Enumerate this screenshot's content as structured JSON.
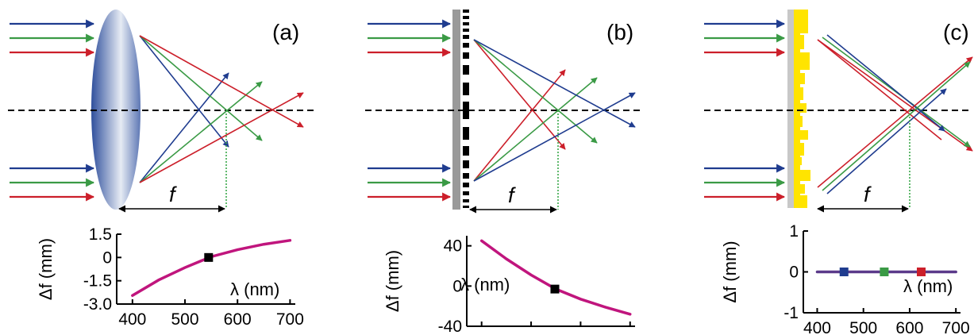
{
  "colors": {
    "blue": "#1f3c8f",
    "green": "#3a9a45",
    "red": "#cc1f2a",
    "magenta": "#c0157d",
    "purple": "#5b3a8a",
    "lens_edge": "#2f4f9c",
    "lens_center": "#f0f3f8",
    "substrate": "#9a9a9a",
    "metasurface": "#ffe400",
    "focus_marker": "#3aa84a"
  },
  "panels": [
    {
      "label": "(a)",
      "element": "refractive-lens",
      "f_label": "f",
      "chart_data": {
        "type": "line",
        "x": [
          400,
          450,
          500,
          550,
          600,
          650,
          700
        ],
        "y": [
          -2.45,
          -1.45,
          -0.65,
          0.05,
          0.5,
          0.85,
          1.1
        ],
        "markers": [
          {
            "x": 545,
            "y": 0.0,
            "color": "#000000"
          }
        ],
        "xlim": [
          370,
          710
        ],
        "ylim": [
          -3.0,
          1.5
        ],
        "xticks": [
          "400",
          "500",
          "600",
          "700"
        ],
        "yticks": [
          "1.5",
          "0",
          "-1.5",
          "-3.0"
        ],
        "xlabel": "λ (nm)",
        "ylabel": "Δf (mm)"
      }
    },
    {
      "label": "(b)",
      "element": "diffractive-grating",
      "f_label": "f",
      "chart_data": {
        "type": "line",
        "x": [
          400,
          450,
          500,
          550,
          600,
          650,
          700
        ],
        "y": [
          45,
          27,
          11,
          -3,
          -13,
          -21,
          -28
        ],
        "markers": [
          {
            "x": 548,
            "y": -3,
            "color": "#000000"
          }
        ],
        "xlim": [
          370,
          710
        ],
        "ylim": [
          -40,
          50
        ],
        "xticks": [
          "400",
          "500",
          "600",
          "700"
        ],
        "yticks": [
          "40",
          "0",
          "-40"
        ],
        "xlabel": "λ (nm)",
        "ylabel": "Δf (mm)"
      }
    },
    {
      "label": "(c)",
      "element": "achromatic-metasurface",
      "f_label": "f",
      "chart_data": {
        "type": "line",
        "x": [
          400,
          700
        ],
        "y": [
          0,
          0
        ],
        "markers": [
          {
            "x": 458,
            "y": 0,
            "color": "#1f3c8f"
          },
          {
            "x": 545,
            "y": 0,
            "color": "#3a9a45"
          },
          {
            "x": 625,
            "y": 0,
            "color": "#cc1f2a"
          }
        ],
        "xlim": [
          370,
          710
        ],
        "ylim": [
          -1,
          1
        ],
        "xticks": [
          "400",
          "500",
          "600",
          "700"
        ],
        "yticks": [
          "1",
          "0",
          "-1"
        ],
        "xlabel": "λ (nm)",
        "ylabel": "Δf (mm)"
      }
    }
  ]
}
